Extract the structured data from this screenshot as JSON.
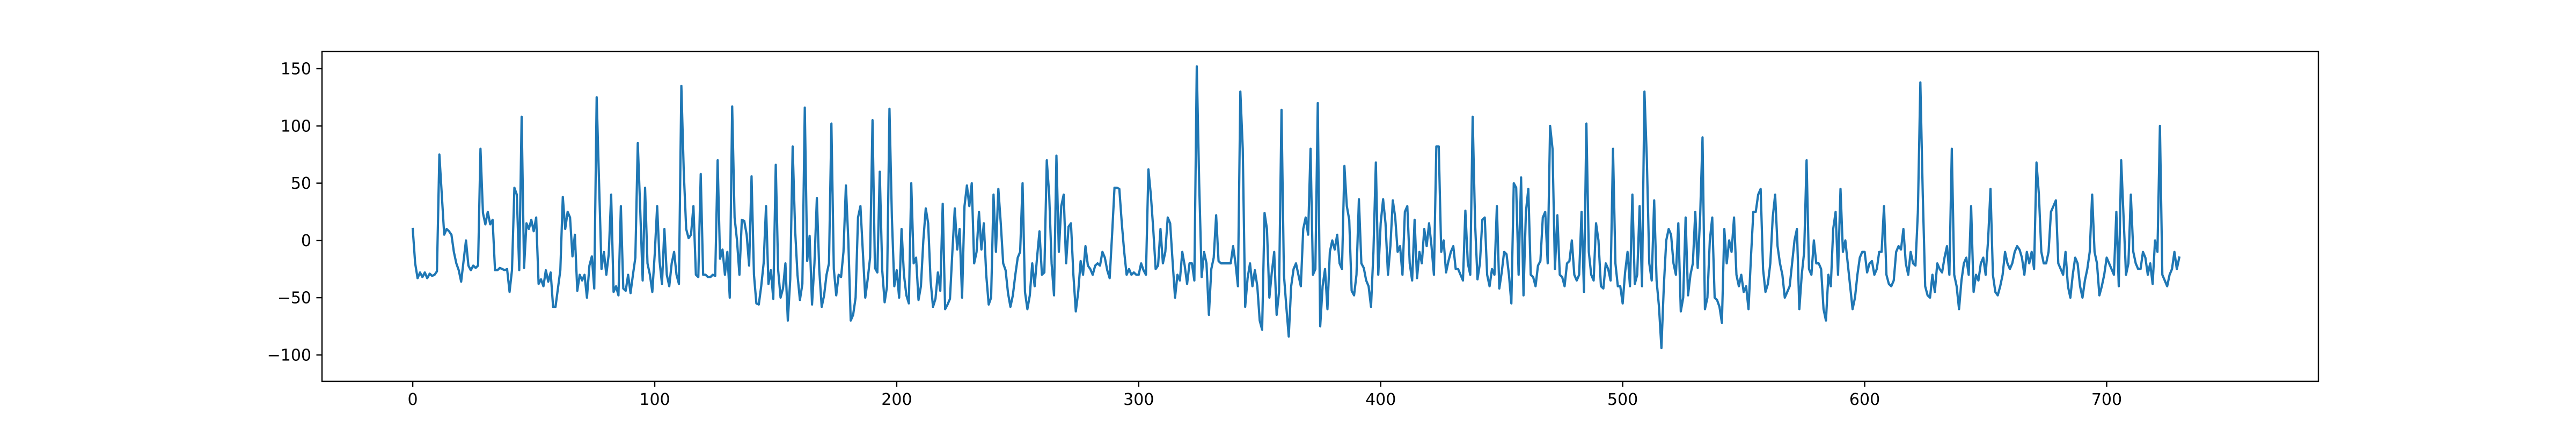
{
  "chart_data": {
    "type": "line",
    "title": "",
    "xlabel": "",
    "ylabel": "",
    "xlim": [
      -37.5,
      787.5
    ],
    "ylim": [
      -123,
      165
    ],
    "xticks": [
      0,
      100,
      200,
      300,
      400,
      500,
      600,
      700
    ],
    "yticks": [
      -100,
      -50,
      0,
      50,
      100,
      150
    ],
    "grid": false,
    "legend": "none",
    "series": [
      {
        "color": "#1f77b4",
        "x_start": 0,
        "x_step": 1,
        "values": [
          10,
          -20,
          -33,
          -28,
          -32,
          -28,
          -33,
          -29,
          -31,
          -30,
          -27,
          75,
          40,
          5,
          10,
          8,
          5,
          -10,
          -20,
          -26,
          -36,
          -18,
          0,
          -22,
          -26,
          -22,
          -24,
          -22,
          80,
          24,
          14,
          25,
          14,
          18,
          -26,
          -26,
          -24,
          -25,
          -26,
          -25,
          -45,
          -26,
          46,
          40,
          -26,
          108,
          -24,
          15,
          10,
          18,
          8,
          20,
          -38,
          -34,
          -40,
          -26,
          -36,
          -28,
          -58,
          -58,
          -42,
          -26,
          38,
          10,
          25,
          20,
          -14,
          5,
          -44,
          -30,
          -35,
          -30,
          -50,
          -22,
          -14,
          -42,
          125,
          50,
          -25,
          -10,
          -30,
          -12,
          40,
          -45,
          -40,
          -48,
          30,
          -42,
          -44,
          -30,
          -46,
          -30,
          -15,
          85,
          28,
          -35,
          46,
          -20,
          -30,
          -45,
          -12,
          30,
          -18,
          -38,
          10,
          -30,
          -40,
          -20,
          -10,
          -30,
          -38,
          135,
          60,
          10,
          2,
          5,
          30,
          -30,
          -32,
          58,
          -30,
          -30,
          -32,
          -32,
          -30,
          -31,
          70,
          -16,
          -8,
          -30,
          -10,
          -50,
          117,
          20,
          0,
          -30,
          18,
          17,
          5,
          -22,
          56,
          -30,
          -55,
          -56,
          -40,
          -20,
          30,
          -38,
          -26,
          -51,
          66,
          -26,
          -50,
          -42,
          -20,
          -70,
          -34,
          82,
          10,
          -30,
          -52,
          -38,
          116,
          -18,
          4,
          -56,
          -20,
          37,
          -26,
          -58,
          -48,
          -30,
          -20,
          102,
          -25,
          -48,
          -30,
          -32,
          -10,
          48,
          0,
          -70,
          -65,
          -50,
          20,
          30,
          -10,
          -50,
          -34,
          -15,
          105,
          -24,
          -28,
          60,
          -26,
          -54,
          -40,
          115,
          20,
          -40,
          -26,
          -50,
          10,
          -30,
          -48,
          -55,
          50,
          -20,
          -15,
          -52,
          -40,
          0,
          28,
          15,
          -35,
          -58,
          -51,
          -28,
          -44,
          32,
          -60,
          -56,
          -51,
          -10,
          28,
          -8,
          10,
          -50,
          30,
          48,
          30,
          50,
          -20,
          -10,
          25,
          -8,
          15,
          -30,
          -56,
          -50,
          40,
          -10,
          45,
          15,
          -20,
          -26,
          -46,
          -58,
          -48,
          -30,
          -15,
          -10,
          50,
          -45,
          -60,
          -48,
          -20,
          -40,
          -15,
          8,
          -30,
          -28,
          70,
          40,
          -20,
          -48,
          74,
          -10,
          30,
          40,
          -20,
          12,
          15,
          -30,
          -62,
          -45,
          -18,
          -30,
          -5,
          -22,
          -25,
          -30,
          -22,
          -20,
          -22,
          -10,
          -15,
          -26,
          -33,
          5,
          46,
          46,
          45,
          15,
          -10,
          -30,
          -25,
          -30,
          -28,
          -30,
          -30,
          -20,
          -26,
          -30,
          62,
          40,
          10,
          -25,
          -22,
          10,
          -20,
          -10,
          20,
          15,
          -18,
          -50,
          -30,
          -35,
          -10,
          -22,
          -38,
          -20,
          -20,
          -35,
          152,
          50,
          -32,
          -10,
          -20,
          -65,
          -25,
          -15,
          22,
          -18,
          -20,
          -20,
          -20,
          -20,
          -20,
          -5,
          -20,
          -40,
          130,
          80,
          -58,
          -33,
          -20,
          -40,
          -26,
          -40,
          -70,
          -78,
          24,
          10,
          -50,
          -28,
          -10,
          -65,
          -45,
          114,
          -30,
          -58,
          -84,
          -40,
          -25,
          -20,
          -30,
          -40,
          10,
          20,
          5,
          80,
          -30,
          -25,
          120,
          -75,
          -40,
          -25,
          -60,
          -10,
          0,
          -8,
          5,
          -20,
          -25,
          65,
          30,
          18,
          -44,
          -48,
          -30,
          36,
          -20,
          -24,
          -35,
          -40,
          -58,
          -10,
          68,
          -30,
          15,
          36,
          15,
          -30,
          -5,
          35,
          20,
          -10,
          -5,
          -30,
          25,
          30,
          -20,
          -35,
          18,
          -33,
          -10,
          -20,
          10,
          -5,
          15,
          -5,
          -30,
          82,
          82,
          -10,
          0,
          -28,
          -18,
          -10,
          -5,
          -25,
          -25,
          -30,
          -35,
          26,
          -20,
          -30,
          108,
          15,
          -34,
          -20,
          18,
          20,
          -30,
          -40,
          -25,
          -30,
          30,
          -42,
          -28,
          -10,
          -12,
          -30,
          -55,
          50,
          46,
          -30,
          55,
          -48,
          25,
          45,
          -30,
          -32,
          -40,
          -22,
          -18,
          20,
          25,
          -20,
          100,
          80,
          -25,
          22,
          -30,
          -32,
          -40,
          -20,
          -18,
          0,
          -30,
          -35,
          -30,
          25,
          -45,
          102,
          -10,
          -30,
          -35,
          15,
          0,
          -40,
          -42,
          -20,
          -25,
          -35,
          80,
          -20,
          -40,
          -40,
          -55,
          -28,
          -10,
          -40,
          40,
          -38,
          -30,
          30,
          -40,
          130,
          70,
          -20,
          -35,
          35,
          -35,
          -58,
          -94,
          -40,
          0,
          10,
          5,
          -20,
          -30,
          15,
          -62,
          -50,
          20,
          -48,
          -30,
          -20,
          25,
          -24,
          20,
          90,
          -60,
          -50,
          0,
          20,
          -50,
          -52,
          -58,
          -72,
          10,
          -20,
          0,
          -10,
          20,
          -30,
          -40,
          -30,
          -45,
          -40,
          -60,
          -15,
          25,
          25,
          40,
          45,
          -25,
          -45,
          -38,
          -20,
          20,
          40,
          -5,
          -20,
          -30,
          -50,
          -45,
          -40,
          -20,
          0,
          10,
          -60,
          -30,
          -10,
          70,
          -25,
          -30,
          0,
          -20,
          -20,
          -25,
          -60,
          -70,
          -30,
          -40,
          10,
          25,
          -30,
          45,
          -10,
          0,
          -20,
          -40,
          -60,
          -50,
          -30,
          -15,
          -10,
          -10,
          -28,
          -20,
          -18,
          -30,
          -25,
          -10,
          -10,
          30,
          -30,
          -38,
          -40,
          -35,
          -10,
          -5,
          -8,
          10,
          -20,
          -30,
          -10,
          -20,
          -22,
          25,
          138,
          40,
          -40,
          -48,
          -50,
          -30,
          -45,
          -20,
          -25,
          -28,
          -15,
          -5,
          -30,
          80,
          -30,
          -40,
          -60,
          -35,
          -20,
          -15,
          -30,
          30,
          -45,
          -30,
          -35,
          -20,
          -15,
          -30,
          0,
          45,
          -30,
          -45,
          -48,
          -40,
          -30,
          -10,
          -20,
          -25,
          -20,
          -10,
          -5,
          -8,
          -15,
          -30,
          -10,
          -20,
          -10,
          -25,
          68,
          40,
          -10,
          -20,
          -20,
          -10,
          25,
          30,
          35,
          -20,
          -25,
          -30,
          -10,
          -40,
          -50,
          -30,
          -15,
          -20,
          -40,
          -50,
          -35,
          -25,
          -10,
          40,
          -10,
          -20,
          -48,
          -40,
          -30,
          -15,
          -20,
          -25,
          -30,
          25,
          -40,
          70,
          20,
          -30,
          -20,
          40,
          -10,
          -20,
          -25,
          -25,
          -10,
          -15,
          -30,
          -20,
          -38,
          0,
          -10,
          100,
          -30,
          -35,
          -40,
          -30,
          -25,
          -10,
          -25,
          -15
        ]
      }
    ]
  }
}
